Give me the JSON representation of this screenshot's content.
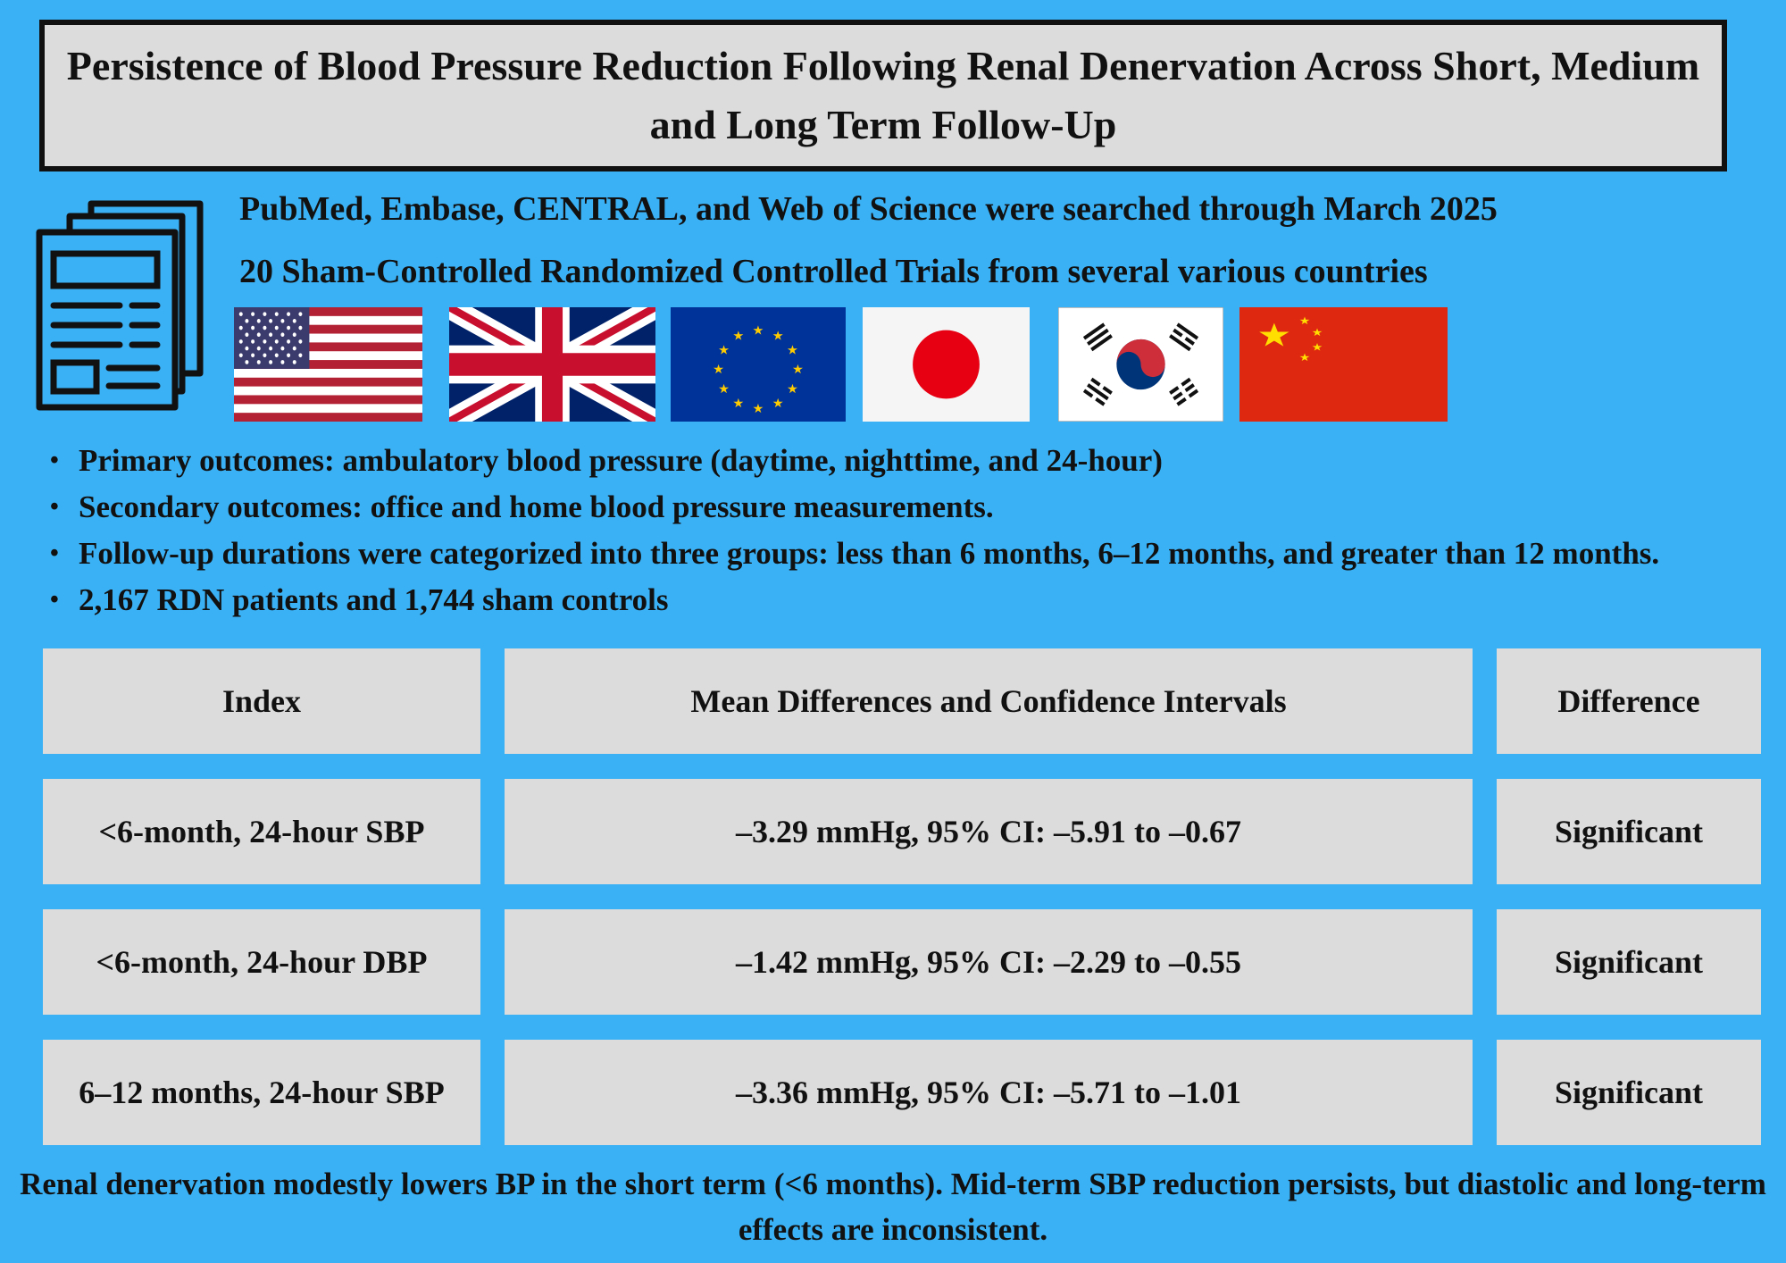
{
  "title": "Persistence of Blood Pressure Reduction Following Renal Denervation Across Short, Medium and Long Term Follow-Up",
  "search_line": "PubMed, Embase, CENTRAL, and Web of Science were searched through March 2025",
  "rct_line": "20 Sham-Controlled Randomized Controlled Trials from several various countries",
  "icons": {
    "document": "document-stack-icon",
    "flags": [
      "usa-flag-icon",
      "uk-flag-icon",
      "eu-flag-icon",
      "japan-flag-icon",
      "south-korea-flag-icon",
      "china-flag-icon"
    ]
  },
  "bullets": [
    "Primary outcomes: ambulatory blood pressure (daytime, nighttime, and 24-hour)",
    "Secondary outcomes: office and home blood pressure measurements.",
    "Follow-up durations were categorized into three groups: less than 6 months, 6–12 months, and greater than 12 months.",
    "2,167 RDN patients and 1,744 sham controls"
  ],
  "table": {
    "headers": [
      "Index",
      "Mean Differences and Confidence Intervals",
      "Difference"
    ],
    "rows": [
      [
        "<6-month, 24-hour SBP",
        "–3.29 mmHg, 95% CI: –5.91 to –0.67",
        "Significant"
      ],
      [
        "<6-month, 24-hour DBP",
        "–1.42 mmHg, 95% CI: –2.29 to –0.55",
        "Significant"
      ],
      [
        "6–12 months, 24-hour SBP",
        "–3.36 mmHg, 95% CI: –5.71 to –1.01",
        "Significant"
      ]
    ]
  },
  "conclusion": "Renal denervation modestly lowers BP in the short term (<6 months). Mid-term SBP reduction persists, but diastolic and long-term effects are inconsistent.",
  "colors": {
    "background": "#3bb1f5",
    "panel": "#dcdcdc",
    "border": "#111111"
  }
}
